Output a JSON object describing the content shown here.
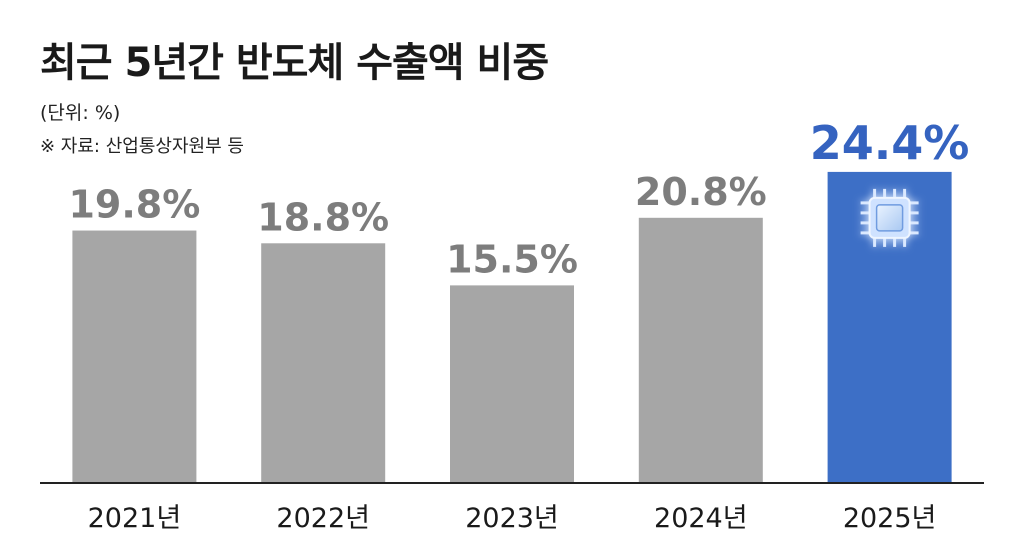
{
  "title": "최근 5년간 반도체 수출액 비중",
  "unit_note": "(단위: %)",
  "source_note": "※ 자료: 산업통상자원부 등",
  "chart_data": {
    "type": "bar",
    "title": "최근 5년간 반도체 수출액 비중",
    "categories": [
      "2021년",
      "2022년",
      "2023년",
      "2024년",
      "2025년"
    ],
    "values": [
      19.8,
      18.8,
      15.5,
      20.8,
      24.4
    ],
    "value_labels": [
      "19.8%",
      "18.8%",
      "15.5%",
      "20.8%",
      "24.4%"
    ],
    "ylabel": "",
    "xlabel": "",
    "ylim": [
      0,
      30
    ],
    "grid": false,
    "highlight_index": 4,
    "highlight_icon": "microchip-icon",
    "colors": {
      "bar": "#a6a6a6",
      "highlight_bar": "#3d6fc6",
      "label": "#7d7d7d",
      "highlight_label": "#3563c0",
      "baseline": "#222222"
    }
  }
}
